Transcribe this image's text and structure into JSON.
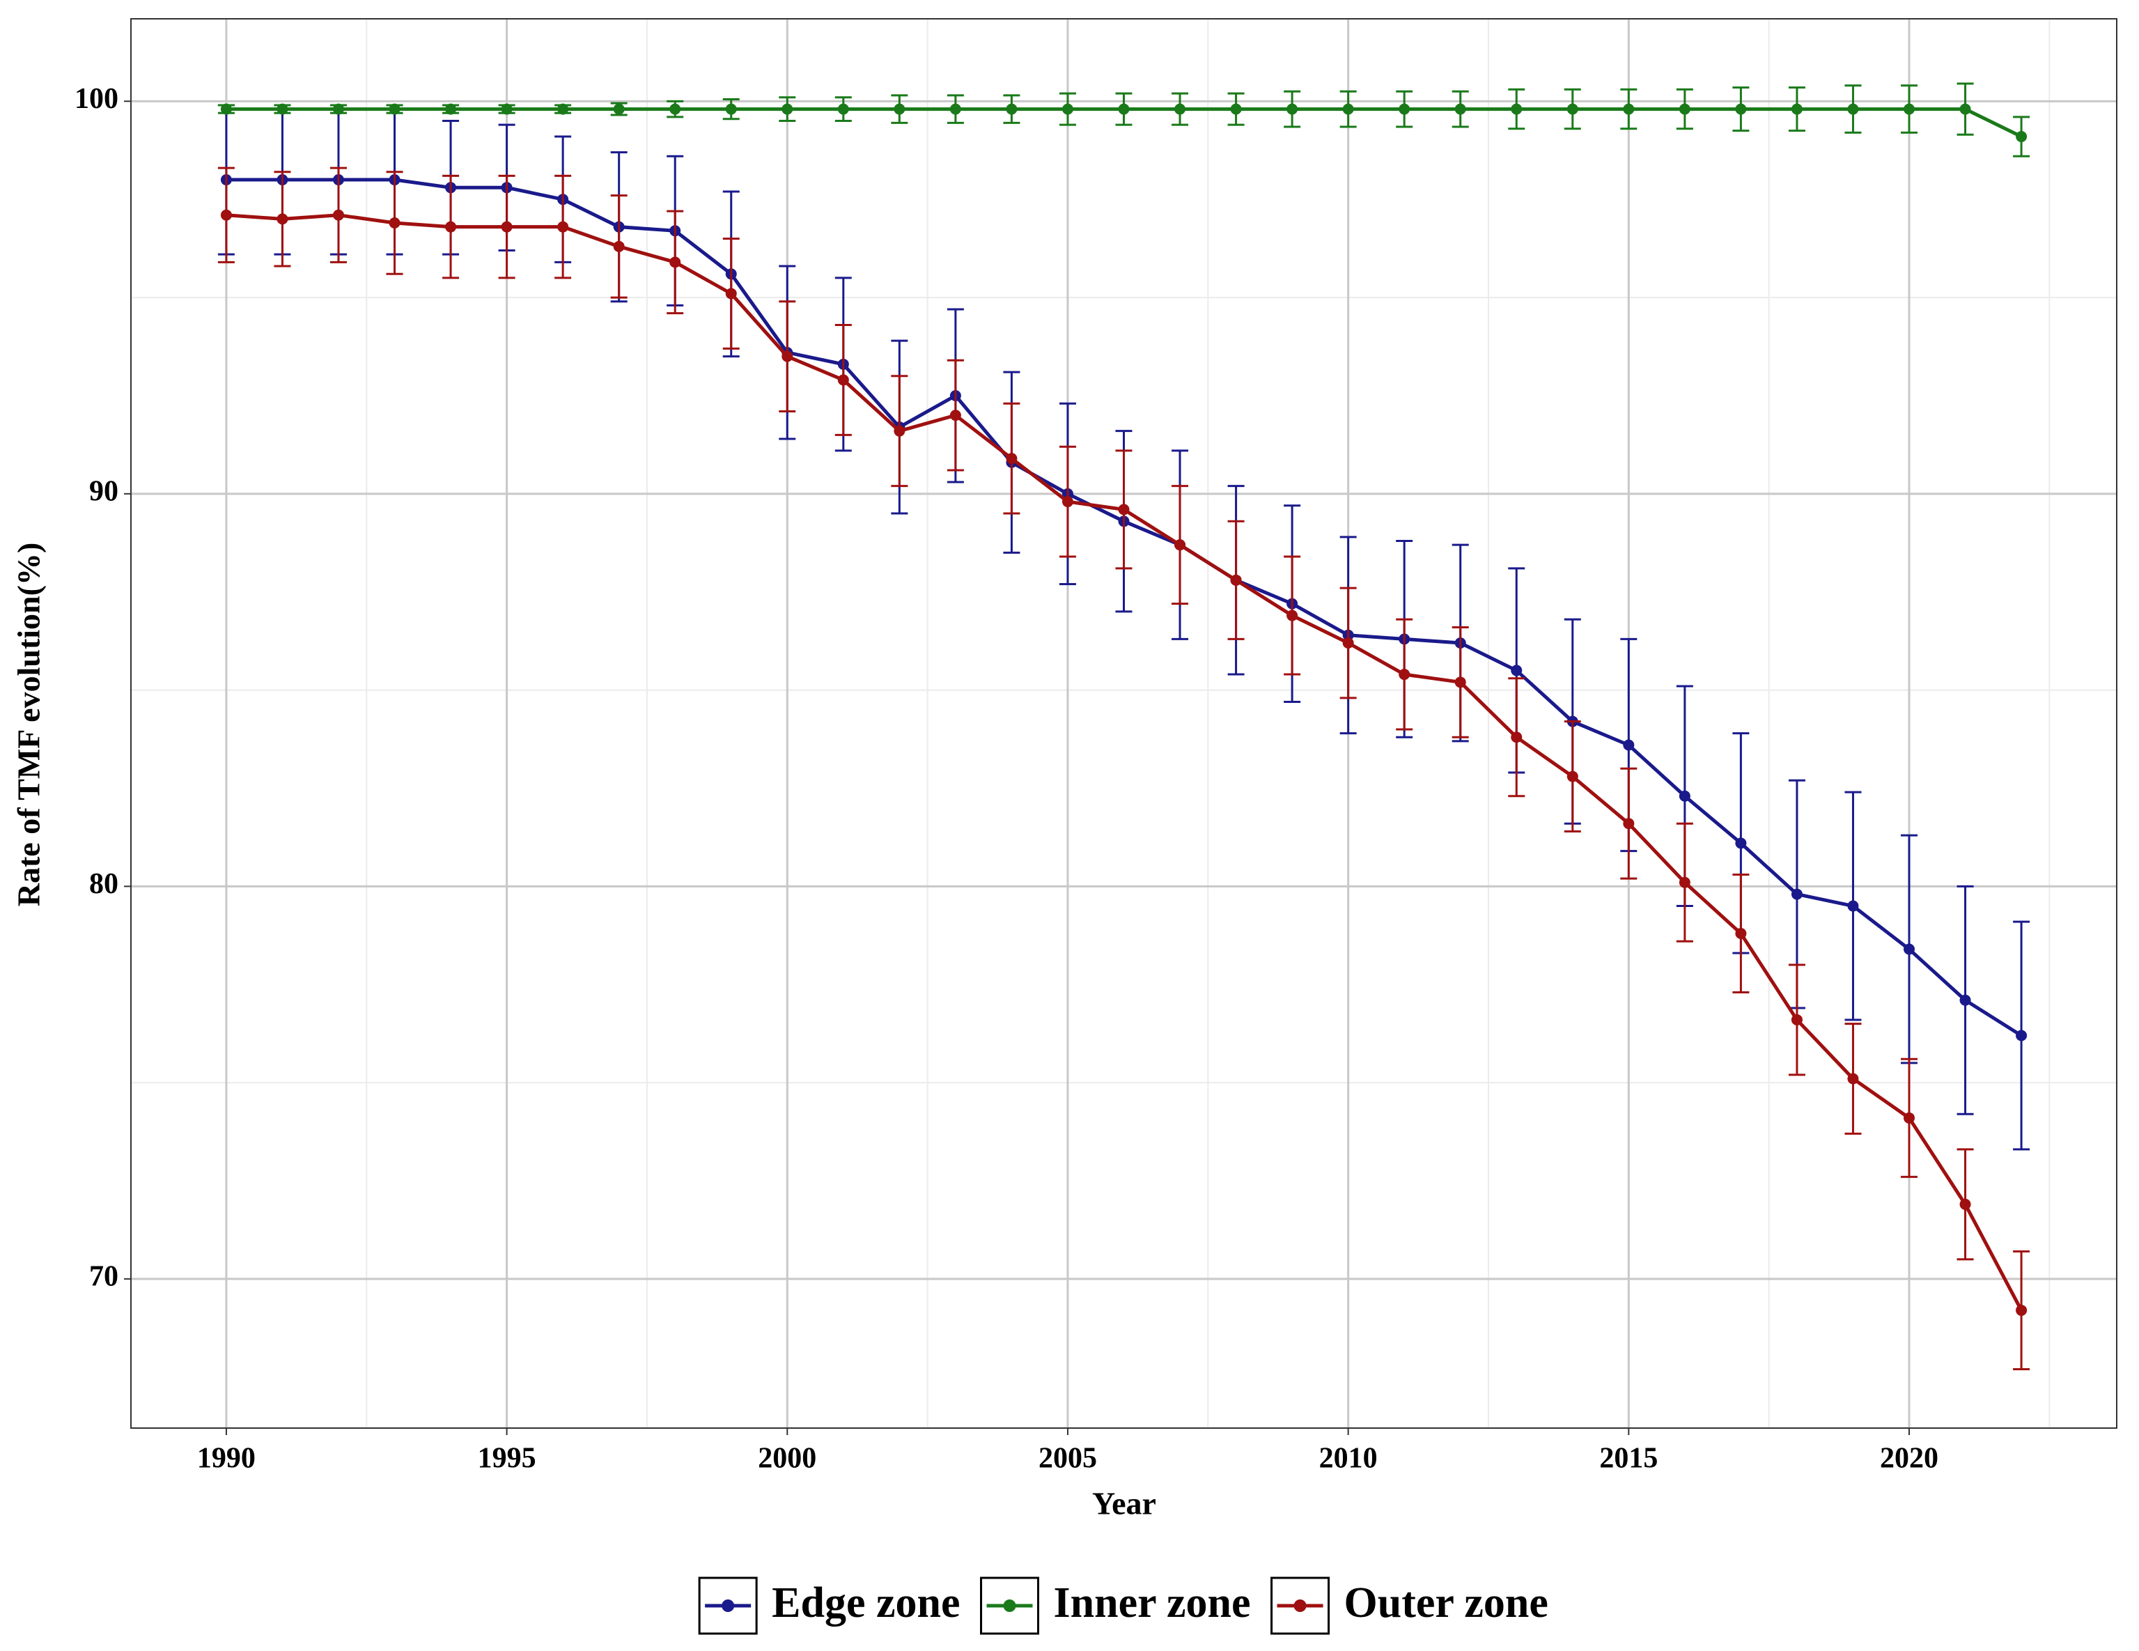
{
  "chart_data": {
    "type": "line",
    "x_label": "Year",
    "y_label": "Rate of TMF evolution(%)",
    "x": [
      1990,
      1991,
      1992,
      1993,
      1994,
      1995,
      1996,
      1997,
      1998,
      1999,
      2000,
      2001,
      2002,
      2003,
      2004,
      2005,
      2006,
      2007,
      2008,
      2009,
      2010,
      2011,
      2012,
      2013,
      2014,
      2015,
      2016,
      2017,
      2018,
      2019,
      2020,
      2021,
      2022
    ],
    "series": [
      {
        "name": "Edge zone",
        "color": "#1a1a8c",
        "values": [
          98.0,
          98.0,
          98.0,
          98.0,
          97.8,
          97.8,
          97.5,
          96.8,
          96.7,
          95.6,
          93.6,
          93.3,
          91.7,
          92.5,
          90.8,
          90.0,
          89.3,
          88.7,
          87.8,
          87.2,
          86.4,
          86.3,
          86.2,
          85.5,
          84.2,
          83.6,
          82.3,
          81.1,
          79.8,
          79.5,
          78.4,
          77.1,
          76.2
        ],
        "errors": [
          1.9,
          1.9,
          1.9,
          1.9,
          1.7,
          1.6,
          1.6,
          1.9,
          1.9,
          2.1,
          2.2,
          2.2,
          2.2,
          2.2,
          2.3,
          2.3,
          2.3,
          2.4,
          2.4,
          2.5,
          2.5,
          2.5,
          2.5,
          2.6,
          2.6,
          2.7,
          2.8,
          2.8,
          2.9,
          2.9,
          2.9,
          2.9,
          2.9
        ]
      },
      {
        "name": "Inner zone",
        "color": "#1a7a1a",
        "values": [
          99.8,
          99.8,
          99.8,
          99.8,
          99.8,
          99.8,
          99.8,
          99.8,
          99.8,
          99.8,
          99.8,
          99.8,
          99.8,
          99.8,
          99.8,
          99.8,
          99.8,
          99.8,
          99.8,
          99.8,
          99.8,
          99.8,
          99.8,
          99.8,
          99.8,
          99.8,
          99.8,
          99.8,
          99.8,
          99.8,
          99.8,
          99.8,
          99.1
        ],
        "errors": [
          0.1,
          0.1,
          0.1,
          0.1,
          0.1,
          0.1,
          0.1,
          0.15,
          0.2,
          0.25,
          0.3,
          0.3,
          0.35,
          0.35,
          0.35,
          0.4,
          0.4,
          0.4,
          0.4,
          0.45,
          0.45,
          0.45,
          0.45,
          0.5,
          0.5,
          0.5,
          0.5,
          0.55,
          0.55,
          0.6,
          0.6,
          0.65,
          0.5
        ]
      },
      {
        "name": "Outer zone",
        "color": "#a01010",
        "values": [
          97.1,
          97.0,
          97.1,
          96.9,
          96.8,
          96.8,
          96.8,
          96.3,
          95.9,
          95.1,
          93.5,
          92.9,
          91.6,
          92.0,
          90.9,
          89.8,
          89.6,
          88.7,
          87.8,
          86.9,
          86.2,
          85.4,
          85.2,
          83.8,
          82.8,
          81.6,
          80.1,
          78.8,
          76.6,
          75.1,
          74.1,
          71.9,
          69.2
        ],
        "errors": [
          1.2,
          1.2,
          1.2,
          1.3,
          1.3,
          1.3,
          1.3,
          1.3,
          1.3,
          1.4,
          1.4,
          1.4,
          1.4,
          1.4,
          1.4,
          1.4,
          1.5,
          1.5,
          1.5,
          1.5,
          1.4,
          1.4,
          1.4,
          1.5,
          1.4,
          1.4,
          1.5,
          1.5,
          1.4,
          1.4,
          1.5,
          1.4,
          1.5
        ]
      }
    ],
    "xlim": [
      1988.3,
      2023.7
    ],
    "ylim": [
      66.2,
      102.1
    ],
    "xticks": [
      1990,
      1995,
      2000,
      2005,
      2010,
      2015,
      2020
    ],
    "yticks": [
      70,
      80,
      90,
      100
    ],
    "x_minor_ticks": [
      1992.5,
      1997.5,
      2002.5,
      2007.5,
      2012.5,
      2017.5,
      2022.5
    ],
    "y_minor_ticks": [
      75,
      85,
      95
    ],
    "grid": true,
    "legend": "bottom"
  }
}
